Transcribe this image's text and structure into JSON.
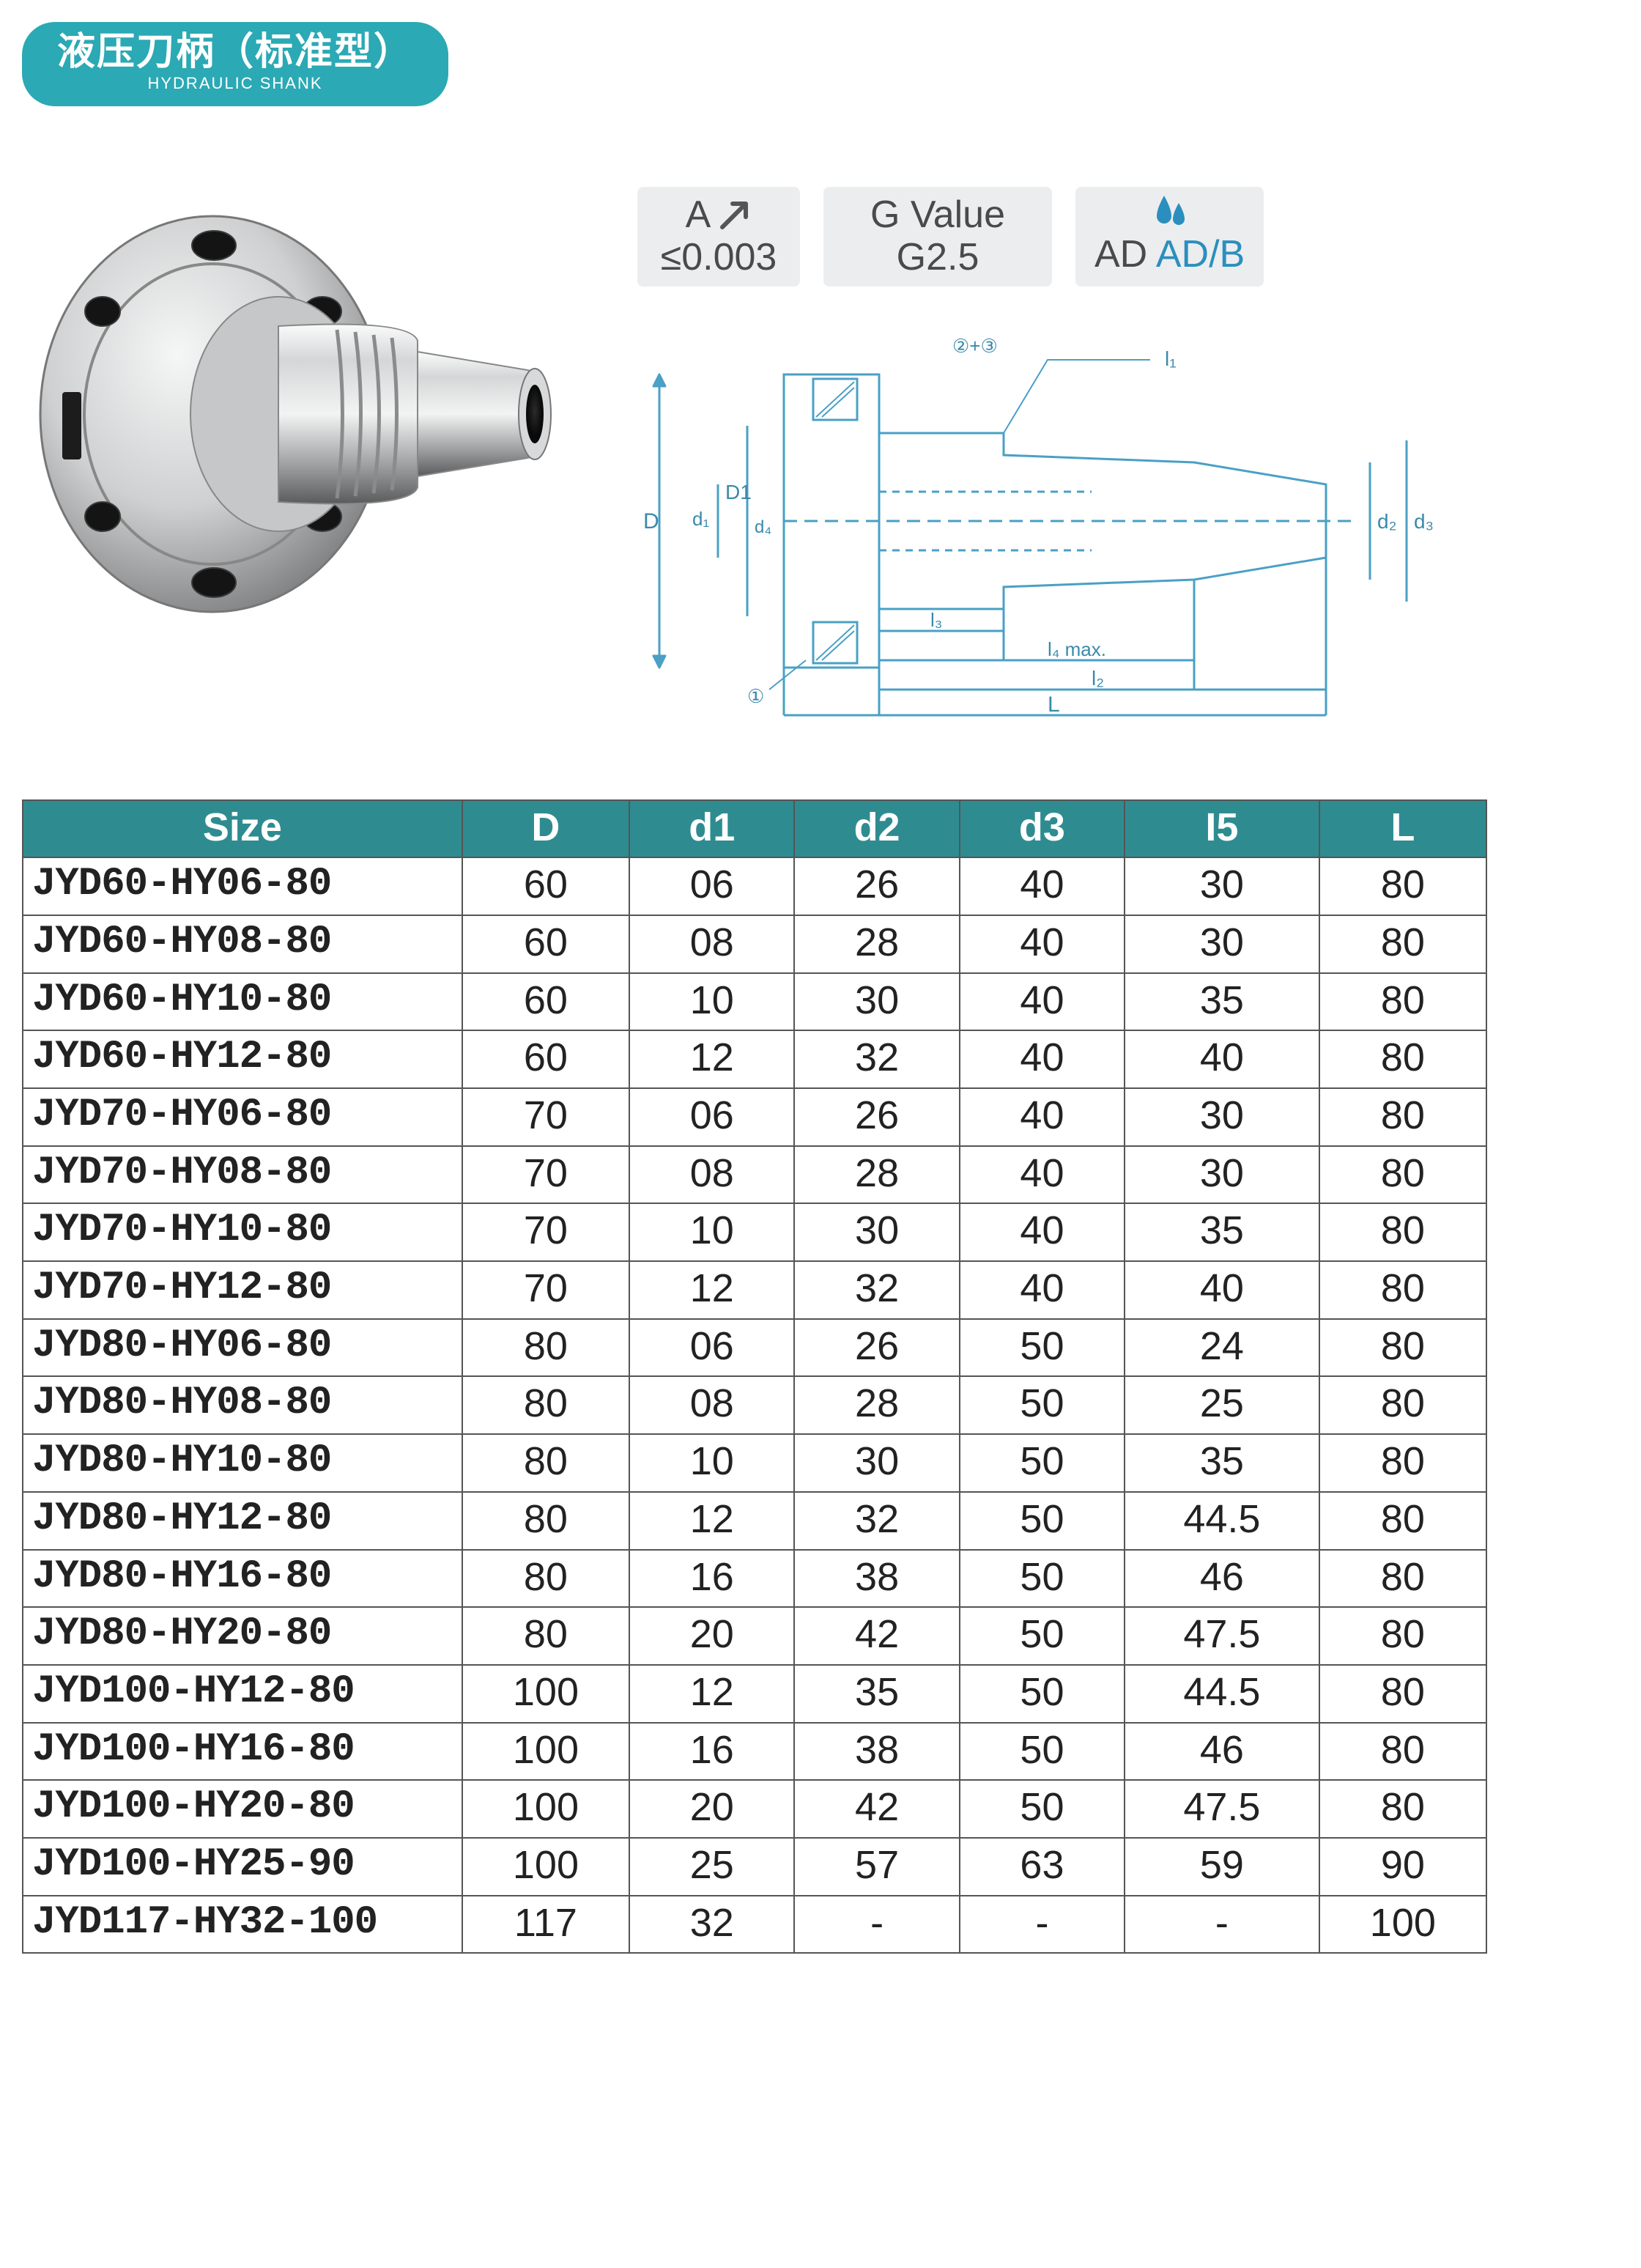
{
  "title": {
    "cn": "液压刀柄（标准型）",
    "en": "HYDRAULIC SHANK"
  },
  "badges": {
    "a": {
      "label": "A",
      "value": "≤0.003"
    },
    "g": {
      "label": "G Value",
      "value": "G2.5"
    },
    "ad": {
      "label_a": "AD ",
      "label_b": "AD/B"
    }
  },
  "colors": {
    "brand": "#2ba9b4",
    "table_header": "#2e8c91",
    "badge_bg": "#ecedee",
    "diagram_blue": "#4aa0c5",
    "text": "#222222",
    "border": "#555555",
    "metal_light": "#e8e9ea",
    "metal_mid": "#b8b9ba",
    "metal_dark": "#58595a"
  },
  "diagram_labels": {
    "top_note": "②+③",
    "D": "D",
    "D1": "D1",
    "d1": "d₁",
    "d4": "d₄",
    "d2": "d₂",
    "d3": "d₃",
    "l1": "l₁",
    "l3": "l₃",
    "l4": "l₄ max.",
    "l2": "l₂",
    "L": "L",
    "circ1": "①"
  },
  "table": {
    "columns": [
      "Size",
      "D",
      "d1",
      "d2",
      "d3",
      "I5",
      "L"
    ],
    "col_widths": [
      "620px",
      "220px",
      "220px",
      "220px",
      "220px",
      "260px",
      "220px"
    ],
    "rows": [
      [
        "JYD60-HY06-80",
        "60",
        "06",
        "26",
        "40",
        "30",
        "80"
      ],
      [
        "JYD60-HY08-80",
        "60",
        "08",
        "28",
        "40",
        "30",
        "80"
      ],
      [
        "JYD60-HY10-80",
        "60",
        "10",
        "30",
        "40",
        "35",
        "80"
      ],
      [
        "JYD60-HY12-80",
        "60",
        "12",
        "32",
        "40",
        "40",
        "80"
      ],
      [
        "JYD70-HY06-80",
        "70",
        "06",
        "26",
        "40",
        "30",
        "80"
      ],
      [
        "JYD70-HY08-80",
        "70",
        "08",
        "28",
        "40",
        "30",
        "80"
      ],
      [
        "JYD70-HY10-80",
        "70",
        "10",
        "30",
        "40",
        "35",
        "80"
      ],
      [
        "JYD70-HY12-80",
        "70",
        "12",
        "32",
        "40",
        "40",
        "80"
      ],
      [
        "JYD80-HY06-80",
        "80",
        "06",
        "26",
        "50",
        "24",
        "80"
      ],
      [
        "JYD80-HY08-80",
        "80",
        "08",
        "28",
        "50",
        "25",
        "80"
      ],
      [
        "JYD80-HY10-80",
        "80",
        "10",
        "30",
        "50",
        "35",
        "80"
      ],
      [
        "JYD80-HY12-80",
        "80",
        "12",
        "32",
        "50",
        "44.5",
        "80"
      ],
      [
        "JYD80-HY16-80",
        "80",
        "16",
        "38",
        "50",
        "46",
        "80"
      ],
      [
        "JYD80-HY20-80",
        "80",
        "20",
        "42",
        "50",
        "47.5",
        "80"
      ],
      [
        "JYD100-HY12-80",
        "100",
        "12",
        "35",
        "50",
        "44.5",
        "80"
      ],
      [
        "JYD100-HY16-80",
        "100",
        "16",
        "38",
        "50",
        "46",
        "80"
      ],
      [
        "JYD100-HY20-80",
        "100",
        "20",
        "42",
        "50",
        "47.5",
        "80"
      ],
      [
        "JYD100-HY25-90",
        "100",
        "25",
        "57",
        "63",
        "59",
        "90"
      ],
      [
        "JYD117-HY32-100",
        "117",
        "32",
        "-",
        "-",
        "-",
        "100"
      ]
    ]
  }
}
